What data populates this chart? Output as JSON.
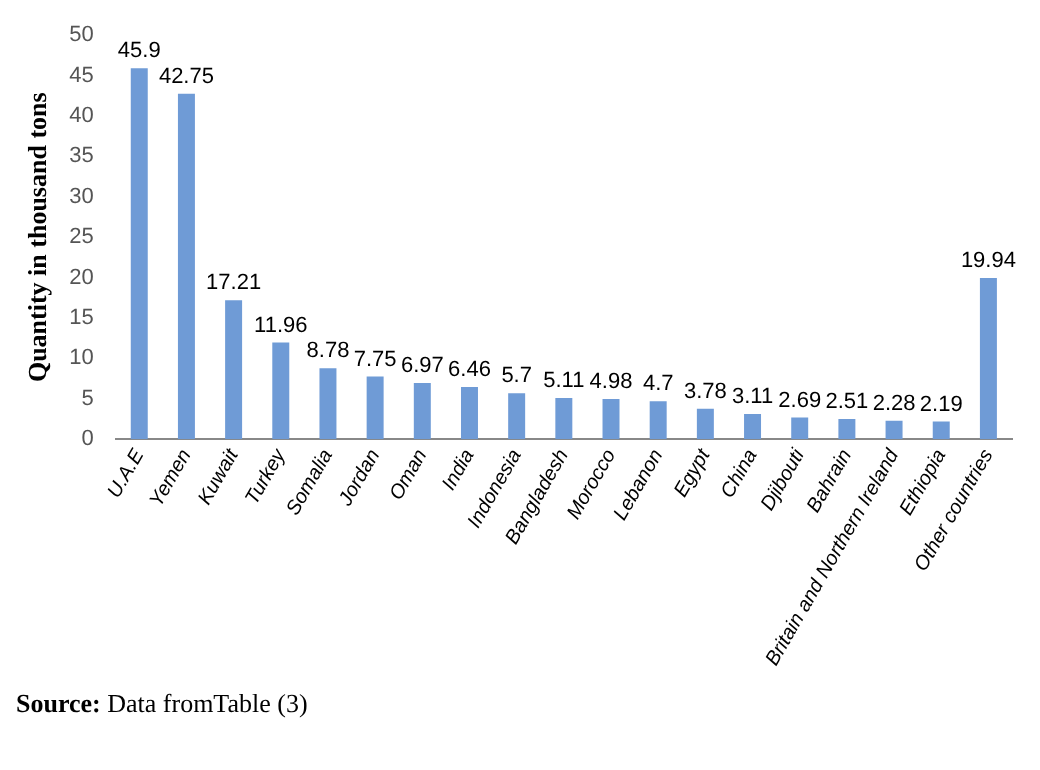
{
  "chart_data": {
    "type": "bar",
    "ylabel": "Quantity in thousand tons",
    "categories": [
      "U.A.E",
      "Yemen",
      "Kuwait",
      "Turkey",
      "Somalia",
      "Jordan",
      "Oman",
      "India",
      "Indonesia",
      "Bangladesh",
      "Morocco",
      "Lebanon",
      "Egypt",
      "China",
      "Djibouti",
      "Bahrain",
      "Britain and Northern Ireland",
      "Ethiopia",
      "Other countries"
    ],
    "values": [
      45.9,
      42.75,
      17.21,
      11.96,
      8.78,
      7.75,
      6.97,
      6.46,
      5.7,
      5.11,
      4.98,
      4.7,
      3.78,
      3.11,
      2.69,
      2.51,
      2.28,
      2.19,
      19.94
    ],
    "color": "#6f9bd6",
    "ylim": [
      0,
      50
    ],
    "yticks": [
      0,
      5,
      10,
      15,
      20,
      25,
      30,
      35,
      40,
      45,
      50
    ],
    "grid": false,
    "data_labels": true,
    "legend": false,
    "annotations": [
      "Source: Data fromTable (3)"
    ]
  }
}
